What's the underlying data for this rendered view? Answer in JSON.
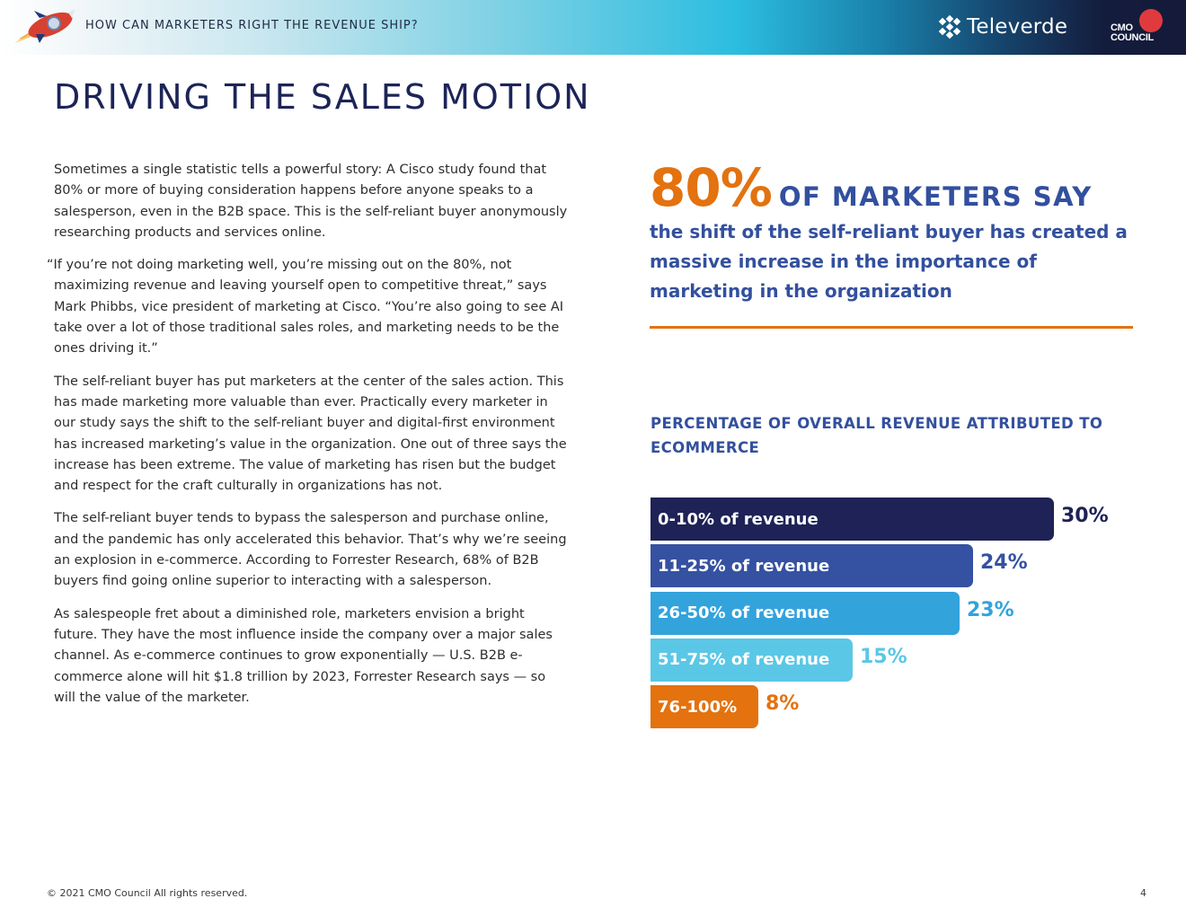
{
  "header": {
    "title": "HOW CAN MARKETERS RIGHT THE REVENUE SHIP?",
    "partner_logo": "Televerde",
    "brand_logo_line1": "CMO",
    "brand_logo_line2": "COUNCIL",
    "rocket_icon": "rocket-icon"
  },
  "page": {
    "title": "DRIVING THE SALES MOTION"
  },
  "body": {
    "paragraphs": [
      "Sometimes a single statistic tells a powerful story: A Cisco study found that 80% or more of buying consideration happens before anyone speaks to a salesperson, even in the B2B space. This is the self-reliant buyer anonymously researching products and services online.",
      "“If you’re not doing marketing well, you’re missing out on the 80%, not maximizing revenue and leaving yourself open to competitive threat,” says Mark Phibbs, vice president of marketing at Cisco. “You’re also going to see AI take over a lot of those traditional sales roles, and marketing needs to be the ones driving it.”",
      "The self-reliant buyer has put marketers at the center of the sales action. This has made marketing more valuable than ever. Practically every marketer in our study says the shift to the self-reliant buyer and digital-first environment has increased marketing’s value in the organization. One out of three says the increase has been extreme. The value of marketing has risen but the budget and respect for the craft culturally in organizations has not.",
      "The self-reliant buyer tends to bypass the salesperson and purchase online, and the pandemic has only accelerated this behavior. That’s why we’re seeing an explosion in e-commerce. According to Forrester Research, 68% of B2B buyers find going online superior to interacting with a salesperson.",
      "As salespeople fret about a diminished role, marketers envision a bright future. They have the most influence inside the company over a major sales channel. As e-commerce continues to grow exponentially — U.S. B2B e-commerce alone will hit $1.8 trillion by 2023, Forrester Research says — so will the value of the marketer."
    ]
  },
  "callout": {
    "number": "80%",
    "headline": "OF MARKETERS SAY",
    "text": "the shift of the self-reliant buyer has created a massive increase in the importance of marketing in the organization"
  },
  "chart_data": {
    "type": "bar",
    "orientation": "horizontal",
    "title": "PERCENTAGE OF OVERALL REVENUE ATTRIBUTED TO ECOMMERCE",
    "categories": [
      "0-10% of revenue",
      "11-25% of revenue",
      "26-50% of revenue",
      "51-75% of revenue",
      "76-100%"
    ],
    "values": [
      30,
      24,
      23,
      15,
      8
    ],
    "value_labels": [
      "30%",
      "24%",
      "23%",
      "15%",
      "8%"
    ],
    "colors": [
      "#1e2256",
      "#3551a1",
      "#33a3dc",
      "#5bc7e6",
      "#e3720f"
    ],
    "value_label_colors": [
      "#1e2256",
      "#3551a1",
      "#33a3dc",
      "#5bc7e6",
      "#e3720f"
    ],
    "xlim": [
      0,
      30
    ]
  },
  "footer": {
    "copyright": "© 2021 CMO Council  All rights reserved.",
    "page_number": "4"
  },
  "colors": {
    "navy": "#1c2457",
    "blue": "#33509e",
    "orange": "#e3720f"
  }
}
